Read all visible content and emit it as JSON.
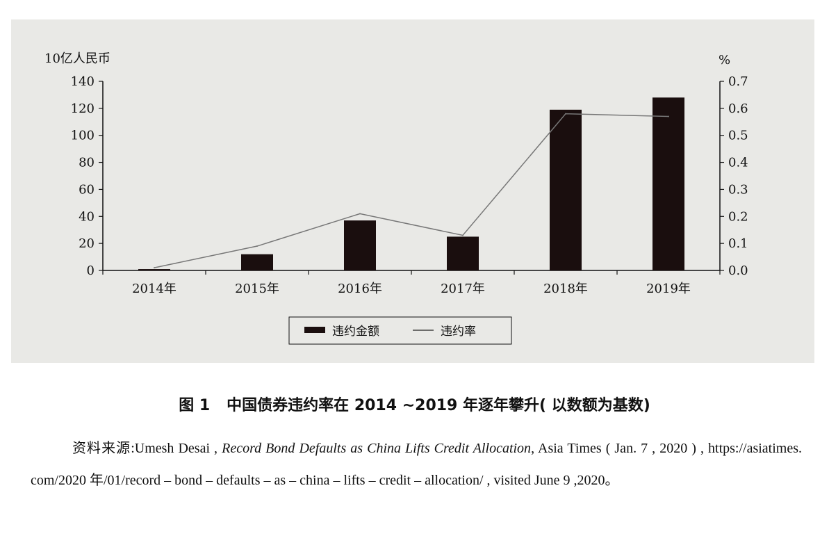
{
  "chart_data": {
    "type": "bar",
    "categories": [
      "2014年",
      "2015年",
      "2016年",
      "2017年",
      "2018年",
      "2019年"
    ],
    "series": [
      {
        "name": "违约金额",
        "type": "bar",
        "axis": "left",
        "values": [
          1,
          12,
          37,
          25,
          119,
          128
        ]
      },
      {
        "name": "违约率",
        "type": "line",
        "axis": "right",
        "values": [
          0.01,
          0.09,
          0.21,
          0.13,
          0.58,
          0.57
        ]
      }
    ],
    "y_left": {
      "label": "10亿人民币",
      "ylim": [
        0,
        140
      ],
      "ticks": [
        "140",
        "120",
        "100",
        "80",
        "60",
        "40",
        "20",
        "0"
      ],
      "tick_values": [
        140,
        120,
        100,
        80,
        60,
        40,
        20,
        0
      ]
    },
    "y_right": {
      "label": "%",
      "ylim": [
        0,
        0.7
      ],
      "ticks": [
        "0.7",
        "0.6",
        "0.5",
        "0.4",
        "0.3",
        "0.2",
        "0.1",
        "0.0"
      ],
      "tick_values": [
        0.7,
        0.6,
        0.5,
        0.4,
        0.3,
        0.2,
        0.1,
        0.0
      ]
    },
    "legend": {
      "position": "bottom-center",
      "entries": [
        "违约金额",
        "违约率"
      ]
    },
    "grid": false
  },
  "caption": {
    "number": "图 1",
    "title": "中国债券违约率在 2014 ~2019 年逐年攀升( 以数额为基数)"
  },
  "source": {
    "label": "资料来源:",
    "author": "Umesh Desai ,",
    "title": "Record Bond Defaults as China Lifts Credit Allocation",
    "details": ", Asia Times ( Jan. 7 , 2020 ) , https://asiatimes. com/2020 年/01/record – bond – defaults – as – china – lifts – credit – allocation/ , visited June 9 ,2020。"
  },
  "colors": {
    "panel_bg": "#e9e9e6",
    "bar": "#1a0e0e",
    "line": "#777777",
    "axis": "#111111"
  }
}
